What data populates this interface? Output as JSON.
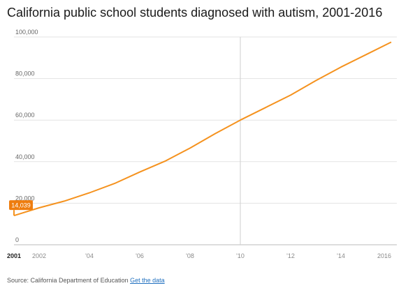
{
  "title": "California public school students diagnosed with autism, 2001-2016",
  "source": {
    "text": "Source: California Department of Education",
    "link_label": "Get the data"
  },
  "chart_data": {
    "type": "line",
    "title": "California public school students diagnosed with autism, 2001-2016",
    "xlabel": "",
    "ylabel": "",
    "x": [
      2001,
      2002,
      2003,
      2004,
      2005,
      2006,
      2007,
      2008,
      2009,
      2010,
      2011,
      2012,
      2013,
      2014,
      2015,
      2016
    ],
    "series": [
      {
        "values": [
          14039,
          17800,
          21000,
          25000,
          29500,
          35000,
          40200,
          46500,
          53500,
          60000,
          66000,
          72000,
          79000,
          85500,
          91500,
          97500
        ]
      }
    ],
    "ylim": [
      0,
      100000
    ],
    "xlim": [
      2001,
      2016
    ],
    "y_ticks": [
      {
        "value": 0,
        "label": "0"
      },
      {
        "value": 20000,
        "label": "20,000"
      },
      {
        "value": 40000,
        "label": "40,000"
      },
      {
        "value": 60000,
        "label": "60,000"
      },
      {
        "value": 80000,
        "label": "80,000"
      },
      {
        "value": 100000,
        "label": "100,000"
      }
    ],
    "x_ticks": [
      {
        "value": 2001,
        "label": "2001",
        "highlight": true
      },
      {
        "value": 2002,
        "label": "2002"
      },
      {
        "value": 2004,
        "label": "'04"
      },
      {
        "value": 2006,
        "label": "'06"
      },
      {
        "value": 2008,
        "label": "'08"
      },
      {
        "value": 2010,
        "label": "'10"
      },
      {
        "value": 2012,
        "label": "'12"
      },
      {
        "value": 2014,
        "label": "'14"
      },
      {
        "value": 2016,
        "label": "2016"
      }
    ],
    "highlight": {
      "x": 2001,
      "value": 14039,
      "label": "14,039"
    },
    "crosshair_x": 2010,
    "grid": true,
    "colors": {
      "line": "#f5921e",
      "grid": "#e3e3e3",
      "axis_text": "#666666",
      "label_bg": "#ee7d0f",
      "crosshair": "#cfcfcf"
    }
  }
}
